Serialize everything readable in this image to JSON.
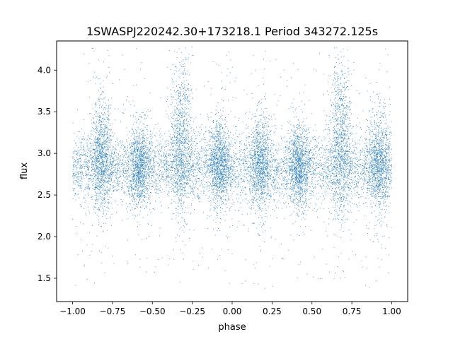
{
  "chart_data": {
    "type": "scatter",
    "title": "1SWASPJ220242.30+173218.1 Period 343272.125s",
    "xlabel": "phase",
    "ylabel": "flux",
    "xlim": [
      -1.1,
      1.1
    ],
    "ylim": [
      1.22,
      4.35
    ],
    "x_ticks": [
      -1.0,
      -0.75,
      -0.5,
      -0.25,
      0.0,
      0.25,
      0.5,
      0.75,
      1.0
    ],
    "x_tick_labels": [
      "−1.00",
      "−0.75",
      "−0.50",
      "−0.25",
      "0.00",
      "0.25",
      "0.50",
      "0.75",
      "1.00"
    ],
    "y_ticks": [
      1.5,
      2.0,
      2.5,
      3.0,
      3.5,
      4.0
    ],
    "y_tick_labels": [
      "1.5",
      "2.0",
      "2.5",
      "3.0",
      "3.5",
      "4.0"
    ],
    "grid": false,
    "legend": "none",
    "marker_color": "#1f77b4",
    "phase_range": [
      -1.0,
      1.0
    ],
    "baseline_flux": 2.82,
    "typical_scatter": 0.2,
    "flux_range": [
      1.38,
      4.28
    ],
    "dense_bands": [
      {
        "phase": -0.82,
        "flux_low": 2.2,
        "flux_high": 3.7
      },
      {
        "phase": -0.58,
        "flux_low": 2.3,
        "flux_high": 3.4
      },
      {
        "phase": -0.32,
        "flux_low": 2.1,
        "flux_high": 4.2
      },
      {
        "phase": -0.08,
        "flux_low": 2.3,
        "flux_high": 3.5
      },
      {
        "phase": 0.18,
        "flux_low": 2.2,
        "flux_high": 3.5
      },
      {
        "phase": 0.42,
        "flux_low": 2.3,
        "flux_high": 3.4
      },
      {
        "phase": 0.68,
        "flux_low": 2.1,
        "flux_high": 4.2
      },
      {
        "phase": 0.92,
        "flux_low": 2.2,
        "flux_high": 3.6
      }
    ]
  }
}
